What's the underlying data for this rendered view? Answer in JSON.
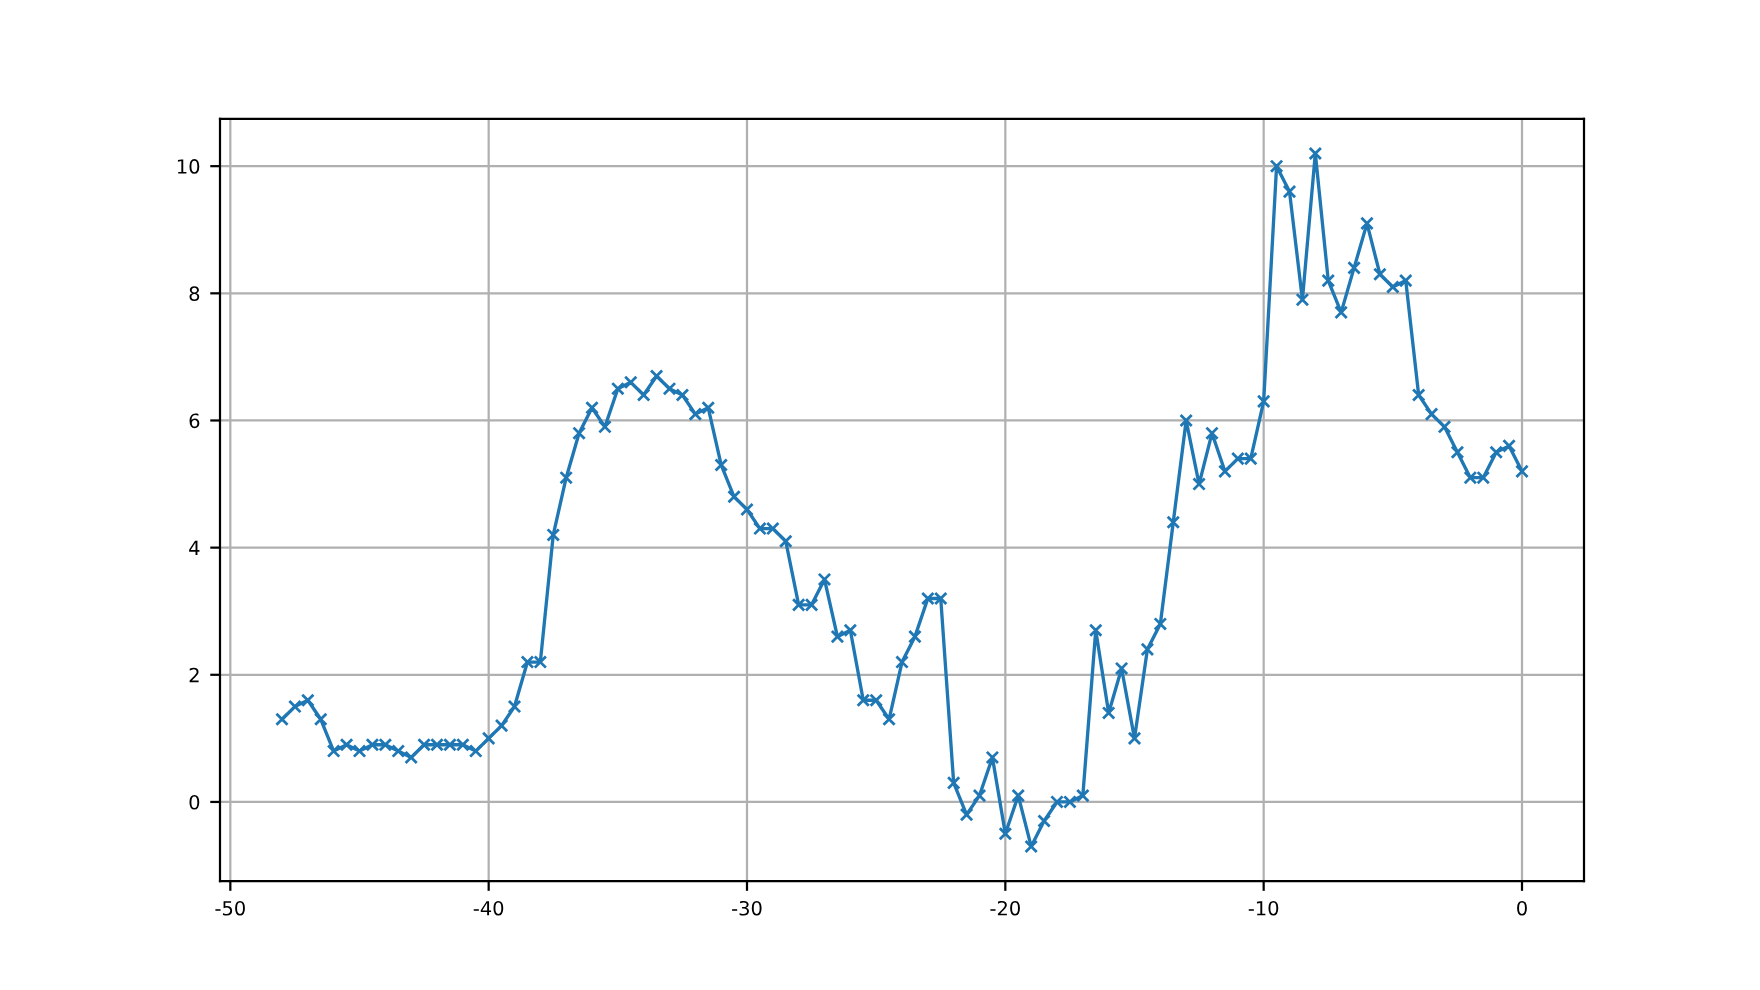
{
  "chart_data": {
    "type": "line",
    "x": [
      -48,
      -47.5,
      -47,
      -46.5,
      -46,
      -45.5,
      -45,
      -44.5,
      -44,
      -43.5,
      -43,
      -42.5,
      -42,
      -41.5,
      -41,
      -40.5,
      -40,
      -39.5,
      -39,
      -38.5,
      -38,
      -37.5,
      -37,
      -36.5,
      -36,
      -35.5,
      -35,
      -34.5,
      -34,
      -33.5,
      -33,
      -32.5,
      -32,
      -31.5,
      -31,
      -30.5,
      -30,
      -29.5,
      -29,
      -28.5,
      -28,
      -27.5,
      -27,
      -26.5,
      -26,
      -25.5,
      -25,
      -24.5,
      -24,
      -23.5,
      -23,
      -22.5,
      -22,
      -21.5,
      -21,
      -20.5,
      -20,
      -19.5,
      -19,
      -18.5,
      -18,
      -17.5,
      -17,
      -16.5,
      -16,
      -15.5,
      -15,
      -14.5,
      -14,
      -13.5,
      -13,
      -12.5,
      -12,
      -11.5,
      -11,
      -10.5,
      -10,
      -9.5,
      -9,
      -8.5,
      -8,
      -7.5,
      -7,
      -6.5,
      -6,
      -5.5,
      -5,
      -4.5,
      -4,
      -3.5,
      -3,
      -2.5,
      -2,
      -1.5,
      -1,
      -0.5,
      0
    ],
    "series": [
      {
        "color": "#1f77b4",
        "values": [
          1.3,
          1.5,
          1.6,
          1.3,
          0.8,
          0.9,
          0.8,
          0.9,
          0.9,
          0.8,
          0.7,
          0.9,
          0.9,
          0.9,
          0.9,
          0.8,
          1.0,
          1.2,
          1.5,
          2.2,
          2.2,
          4.2,
          5.1,
          5.8,
          6.2,
          5.9,
          6.5,
          6.6,
          6.4,
          6.7,
          6.5,
          6.4,
          6.1,
          6.2,
          5.3,
          4.8,
          4.6,
          4.3,
          4.3,
          4.1,
          3.1,
          3.1,
          3.5,
          2.6,
          2.7,
          1.6,
          1.6,
          1.3,
          2.2,
          2.6,
          3.2,
          3.2,
          0.3,
          -0.2,
          0.1,
          0.7,
          -0.5,
          0.1,
          -0.7,
          -0.3,
          0.0,
          0.0,
          0.1,
          2.7,
          1.4,
          2.1,
          1.0,
          2.4,
          2.8,
          4.4,
          6.0,
          5.0,
          5.8,
          5.2,
          5.4,
          5.4,
          6.3,
          10.0,
          9.6,
          7.9,
          10.2,
          8.2,
          7.7,
          8.4,
          9.1,
          8.3,
          8.1,
          8.2,
          6.4,
          6.1,
          5.9,
          5.5,
          5.1,
          5.1,
          5.5,
          5.6,
          5.2
        ]
      }
    ],
    "xlim": [
      -50.4,
      2.4
    ],
    "ylim": [
      -1.245,
      10.745
    ],
    "xticks": [
      -50,
      -40,
      -30,
      -20,
      -10,
      0
    ],
    "yticks": [
      0,
      2,
      4,
      6,
      8,
      10
    ],
    "grid": true,
    "marker": "cross",
    "line_style": "solid"
  }
}
